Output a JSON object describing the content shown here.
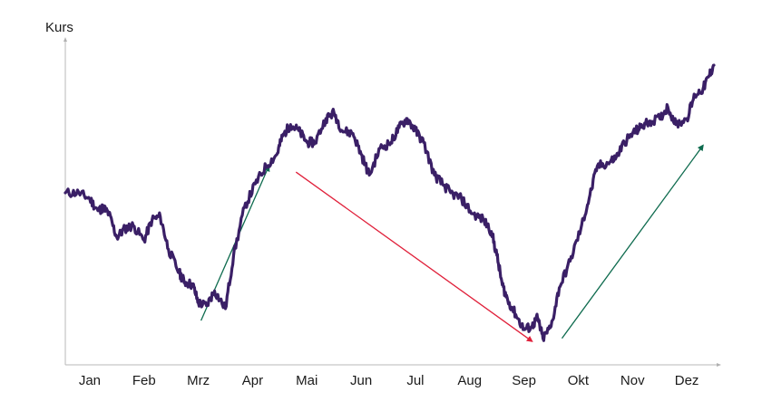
{
  "chart_data": {
    "type": "line",
    "title": "",
    "xlabel": "",
    "ylabel": "Kurs",
    "categories": [
      "Jan",
      "Feb",
      "Mrz",
      "Apr",
      "Mai",
      "Jun",
      "Jul",
      "Aug",
      "Sep",
      "Okt",
      "Nov",
      "Dez"
    ],
    "xlim": [
      0,
      12
    ],
    "ylim": [
      0,
      100
    ],
    "grid": false,
    "series": [
      {
        "color": "#3a1f66",
        "x": [
          0,
          0.25,
          0.45,
          0.6,
          0.7,
          0.8,
          0.95,
          1.1,
          1.25,
          1.45,
          1.6,
          1.75,
          1.9,
          2.1,
          2.2,
          2.35,
          2.45,
          2.6,
          2.75,
          2.95,
          3.1,
          3.3,
          3.5,
          3.7,
          3.9,
          4.0,
          4.15,
          4.3,
          4.45,
          4.6,
          4.8,
          4.95,
          5.1,
          5.3,
          5.45,
          5.6,
          5.8,
          6.0,
          6.15,
          6.3,
          6.45,
          6.6,
          6.8,
          6.95,
          7.1,
          7.3,
          7.5,
          7.7,
          7.85,
          7.95,
          8.05,
          8.15,
          8.3,
          8.45,
          8.6,
          8.7,
          8.8,
          8.95,
          9.1,
          9.3,
          9.5,
          9.65,
          9.8,
          10.0,
          10.15,
          10.3,
          10.45,
          10.6,
          10.75,
          10.95,
          11.1,
          11.25,
          11.45,
          11.6,
          11.75,
          11.85,
          11.95
        ],
        "y": [
          57,
          57,
          55,
          51,
          52,
          50,
          42,
          45,
          46,
          41,
          48,
          49,
          38,
          30,
          27,
          26,
          20,
          19,
          24,
          18,
          36,
          52,
          60,
          66,
          70,
          76,
          80,
          78,
          74,
          74,
          82,
          84,
          78,
          77,
          70,
          63,
          72,
          74,
          79,
          82,
          78,
          74,
          63,
          60,
          57,
          55,
          50,
          48,
          44,
          36,
          26,
          21,
          16,
          11,
          12,
          15,
          8,
          12,
          25,
          34,
          45,
          55,
          66,
          67,
          69,
          74,
          77,
          79,
          81,
          82,
          86,
          80,
          82,
          90,
          92,
          96,
          100
        ]
      }
    ],
    "annotations": [
      {
        "type": "arrow",
        "color": "#0e6b4e",
        "from": [
          2.5,
          14
        ],
        "to": [
          3.75,
          66
        ]
      },
      {
        "type": "arrow",
        "color": "#e0203a",
        "from": [
          4.25,
          64
        ],
        "to": [
          8.6,
          7
        ]
      },
      {
        "type": "arrow",
        "color": "#0e6b4e",
        "from": [
          9.15,
          8
        ],
        "to": [
          11.75,
          73
        ]
      }
    ]
  }
}
